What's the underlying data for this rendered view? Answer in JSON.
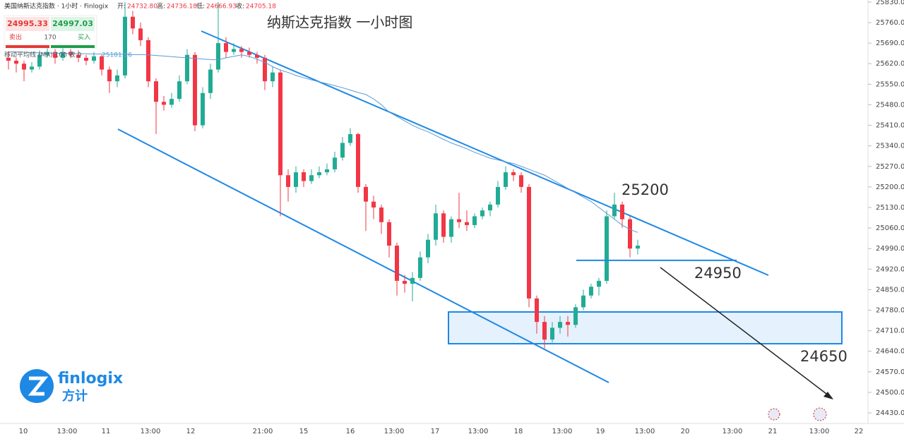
{
  "header": {
    "symbol": "美国纳斯达克指数 · 1小时 · Finlogix",
    "open_label": "开:",
    "open": "24732.80",
    "high_label": "高:",
    "high": "24736.18",
    "low_label": "低:",
    "low": "24666.93",
    "close_label": "收:",
    "close": "24705.18"
  },
  "trade_panel": {
    "sell_price": "24995.33",
    "buy_price": "24997.03",
    "sell": "卖出",
    "spread": "170",
    "buy": "买入"
  },
  "logo": {
    "name": "finlogix",
    "cn": "方计"
  },
  "chart_data": {
    "type": "candlestick",
    "title": "纳斯达克指数 一小时图",
    "up_color": "#22ab94",
    "down_color": "#f23645",
    "ylim": [
      24394,
      25837
    ],
    "yticks": [
      {
        "value": 25830,
        "label": "25830.00"
      },
      {
        "value": 25760,
        "label": "25760.00"
      },
      {
        "value": 25690,
        "label": "25690.00"
      },
      {
        "value": 25620,
        "label": "25620.00"
      },
      {
        "value": 25550,
        "label": "25550.00"
      },
      {
        "value": 25480,
        "label": "25480.00"
      },
      {
        "value": 25410,
        "label": "25410.00"
      },
      {
        "value": 25340,
        "label": "25340.00"
      },
      {
        "value": 25270,
        "label": "25270.00"
      },
      {
        "value": 25200,
        "label": "25200.00"
      },
      {
        "value": 25130,
        "label": "25130.00"
      },
      {
        "value": 25060,
        "label": "25060.00"
      },
      {
        "value": 24990,
        "label": "24990.00"
      },
      {
        "value": 24920,
        "label": "24920.00"
      },
      {
        "value": 24850,
        "label": "24850.00"
      },
      {
        "value": 24780,
        "label": "24780.00"
      },
      {
        "value": 24710,
        "label": "24710.00"
      },
      {
        "value": 24640,
        "label": "24640.00"
      },
      {
        "value": 24570,
        "label": "24570.00"
      },
      {
        "value": 24500,
        "label": "24500.00"
      },
      {
        "value": 24430,
        "label": "24430.00"
      }
    ],
    "xtick_labels": [
      "10",
      "13:00",
      "11",
      "13:00",
      "12",
      "21:00",
      "15",
      "16",
      "13:00",
      "17",
      "13:00",
      "18",
      "13:00",
      "19",
      "13:00",
      "20",
      "13:00",
      "21",
      "13:00",
      "22"
    ],
    "levels": [
      25200,
      24950,
      24650
    ],
    "ma": {
      "name": "移动平均线 (MA) 100 收 0",
      "value_label": "25181.26",
      "color": "#5b9bd5",
      "values": [
        25660,
        25660,
        25659,
        25658,
        25657,
        25656,
        25656,
        25655,
        25655,
        25654,
        25654,
        25653,
        25653,
        25652,
        25652,
        25652,
        25651,
        25651,
        25650,
        25648,
        25646,
        25644,
        25642,
        25640,
        25638,
        25636,
        25634,
        25633,
        25640,
        25645,
        25650,
        25645,
        25635,
        25625,
        25610,
        25598,
        25590,
        25580,
        25572,
        25565,
        25558,
        25552,
        25545,
        25538,
        25530,
        25522,
        25515,
        25500,
        25480,
        25455,
        25440,
        25425,
        25410,
        25398,
        25388,
        25375,
        25362,
        25350,
        25340,
        25330,
        25318,
        25308,
        25298,
        25292,
        25285,
        25280,
        25270,
        25260,
        25250,
        25240,
        25225,
        25210,
        25195,
        25180,
        25165,
        25150,
        25130,
        25110,
        25090,
        25070,
        25055,
        25045
      ]
    },
    "ohlc": [
      [
        25640,
        25660,
        25600,
        25630
      ],
      [
        25630,
        25640,
        25590,
        25620
      ],
      [
        25620,
        25630,
        25560,
        25600
      ],
      [
        25600,
        25625,
        25590,
        25610
      ],
      [
        25610,
        25665,
        25600,
        25650
      ],
      [
        25650,
        25680,
        25640,
        25660
      ],
      [
        25660,
        25670,
        25620,
        25640
      ],
      [
        25640,
        25675,
        25630,
        25660
      ],
      [
        25660,
        25670,
        25640,
        25650
      ],
      [
        25650,
        25665,
        25625,
        25640
      ],
      [
        25640,
        25650,
        25615,
        25630
      ],
      [
        25630,
        25660,
        25620,
        25645
      ],
      [
        25645,
        25650,
        25580,
        25600
      ],
      [
        25600,
        25610,
        25520,
        25560
      ],
      [
        25560,
        25600,
        25540,
        25580
      ],
      [
        25580,
        25830,
        25570,
        25780
      ],
      [
        25780,
        25800,
        25720,
        25740
      ],
      [
        25740,
        25760,
        25680,
        25700
      ],
      [
        25700,
        25710,
        25540,
        25560
      ],
      [
        25560,
        25570,
        25380,
        25490
      ],
      [
        25490,
        25510,
        25460,
        25480
      ],
      [
        25480,
        25520,
        25470,
        25500
      ],
      [
        25500,
        25580,
        25490,
        25560
      ],
      [
        25560,
        25670,
        25550,
        25650
      ],
      [
        25650,
        25660,
        25390,
        25410
      ],
      [
        25410,
        25540,
        25400,
        25520
      ],
      [
        25520,
        25620,
        25500,
        25600
      ],
      [
        25600,
        25830,
        25590,
        25690
      ],
      [
        25690,
        25710,
        25640,
        25660
      ],
      [
        25660,
        25690,
        25650,
        25670
      ],
      [
        25670,
        25680,
        25640,
        25660
      ],
      [
        25660,
        25675,
        25640,
        25650
      ],
      [
        25650,
        25660,
        25620,
        25640
      ],
      [
        25640,
        25650,
        25530,
        25560
      ],
      [
        25560,
        25610,
        25540,
        25590
      ],
      [
        25590,
        25600,
        25100,
        25240
      ],
      [
        25240,
        25260,
        25150,
        25200
      ],
      [
        25200,
        25270,
        25180,
        25250
      ],
      [
        25250,
        25260,
        25200,
        25220
      ],
      [
        25220,
        25260,
        25210,
        25240
      ],
      [
        25240,
        25270,
        25230,
        25250
      ],
      [
        25250,
        25280,
        25240,
        25260
      ],
      [
        25260,
        25320,
        25250,
        25300
      ],
      [
        25300,
        25370,
        25290,
        25350
      ],
      [
        25350,
        25400,
        25340,
        25380
      ],
      [
        25380,
        25385,
        25180,
        25200
      ],
      [
        25200,
        25210,
        25050,
        25150
      ],
      [
        25150,
        25170,
        25090,
        25130
      ],
      [
        25130,
        25140,
        25040,
        25080
      ],
      [
        25080,
        25090,
        24960,
        25000
      ],
      [
        25000,
        25010,
        24830,
        24880
      ],
      [
        24880,
        24900,
        24840,
        24870
      ],
      [
        24870,
        24910,
        24810,
        24890
      ],
      [
        24890,
        24980,
        24880,
        24960
      ],
      [
        24960,
        25040,
        24940,
        25020
      ],
      [
        25020,
        25140,
        25000,
        25110
      ],
      [
        25110,
        25120,
        25010,
        25030
      ],
      [
        25030,
        25100,
        25010,
        25090
      ],
      [
        25090,
        25180,
        25060,
        25080
      ],
      [
        25080,
        25120,
        25050,
        25070
      ],
      [
        25070,
        25110,
        25060,
        25100
      ],
      [
        25100,
        25130,
        25090,
        25120
      ],
      [
        25120,
        25150,
        25100,
        25140
      ],
      [
        25140,
        25220,
        25130,
        25200
      ],
      [
        25200,
        25270,
        25190,
        25250
      ],
      [
        25250,
        25260,
        25220,
        25240
      ],
      [
        25240,
        25250,
        25180,
        25200
      ],
      [
        25200,
        25210,
        24790,
        24820
      ],
      [
        24820,
        24830,
        24700,
        24740
      ],
      [
        24740,
        24760,
        24650,
        24680
      ],
      [
        24680,
        24740,
        24670,
        24720
      ],
      [
        24720,
        24760,
        24700,
        24740
      ],
      [
        24740,
        24760,
        24690,
        24730
      ],
      [
        24730,
        24800,
        24720,
        24790
      ],
      [
        24790,
        24850,
        24780,
        24830
      ],
      [
        24830,
        24870,
        24820,
        24860
      ],
      [
        24860,
        24890,
        24830,
        24880
      ],
      [
        24880,
        25120,
        24870,
        25100
      ],
      [
        25100,
        25180,
        25090,
        25140
      ],
      [
        25140,
        25150,
        25060,
        25090
      ],
      [
        25090,
        25100,
        24960,
        24990
      ],
      [
        24990,
        25020,
        24970,
        25000
      ]
    ]
  }
}
